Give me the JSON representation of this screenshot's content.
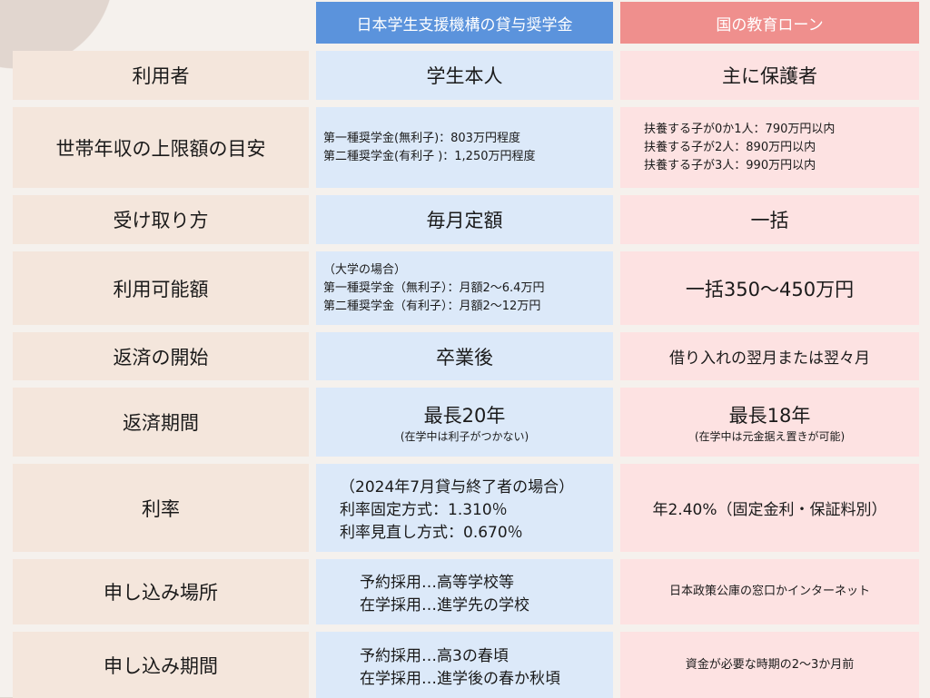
{
  "header": {
    "col_a": "日本学生支援機構の貸与奨学金",
    "col_b": "国の教育ローン"
  },
  "colors": {
    "header_a": "#5b93dc",
    "header_b": "#ef8f8d",
    "label_bg": "#f4e6dc",
    "col_a_bg": "#dce9f9",
    "col_b_bg": "#fde2e2"
  },
  "rows": [
    {
      "label": "利用者",
      "a": {
        "style": "big",
        "lines": [
          "学生本人"
        ]
      },
      "b": {
        "style": "big",
        "lines": [
          "主に保護者"
        ]
      }
    },
    {
      "label": "世帯年収の上限額の目安",
      "a": {
        "style": "small left",
        "lines": [
          "第一種奨学金(無利子)：803万円程度",
          "第二種奨学金(有利子 )：1,250万円程度"
        ]
      },
      "b": {
        "style": "small leftpad2",
        "lines": [
          "扶養する子が0か1人：790万円以内",
          "扶養する子が2人：890万円以内",
          "扶養する子が3人：990万円以内"
        ]
      }
    },
    {
      "label": "受け取り方",
      "a": {
        "style": "big",
        "lines": [
          "毎月定額"
        ]
      },
      "b": {
        "style": "big",
        "lines": [
          "一括"
        ]
      }
    },
    {
      "label": "利用可能額",
      "a": {
        "style": "small left",
        "lines": [
          "（大学の場合）",
          "第一種奨学金（無利子）：月額2～6.4万円",
          "第二種奨学金（有利子）：月額2～12万円"
        ]
      },
      "b": {
        "style": "big",
        "lines": [
          "一括350～450万円"
        ]
      }
    },
    {
      "label": "返済の開始",
      "a": {
        "style": "big",
        "lines": [
          "卒業後"
        ]
      },
      "b": {
        "style": "mid",
        "lines": [
          "借り入れの翌月または翌々月"
        ]
      }
    },
    {
      "label": "返済期間",
      "a": {
        "style": "big",
        "lines": [
          "最長20年"
        ],
        "note": "(在学中は利子がつかない)"
      },
      "b": {
        "style": "big",
        "lines": [
          "最長18年"
        ],
        "note": "(在学中は元金据え置きが可能)"
      }
    },
    {
      "label": "利率",
      "a": {
        "style": "mid leftpad2",
        "lines": [
          "（2024年7月貸与終了者の場合）",
          "利率固定方式：1.310％",
          "利率見直し方式：0.670％"
        ]
      },
      "b": {
        "style": "mid",
        "lines": [
          "年2.40%（固定金利・保証料別）"
        ]
      }
    },
    {
      "label": "申し込み場所",
      "a": {
        "style": "mid leftpad",
        "lines": [
          "予約採用…高等学校等",
          "在学採用…進学先の学校"
        ]
      },
      "b": {
        "style": "small",
        "lines": [
          "日本政策公庫の窓口かインターネット"
        ]
      }
    },
    {
      "label": "申し込み期間",
      "a": {
        "style": "mid leftpad",
        "lines": [
          "予約採用…高3の春頃",
          "在学採用…進学後の春か秋頃"
        ]
      },
      "b": {
        "style": "small",
        "lines": [
          "資金が必要な時期の2～3か月前"
        ]
      }
    }
  ]
}
